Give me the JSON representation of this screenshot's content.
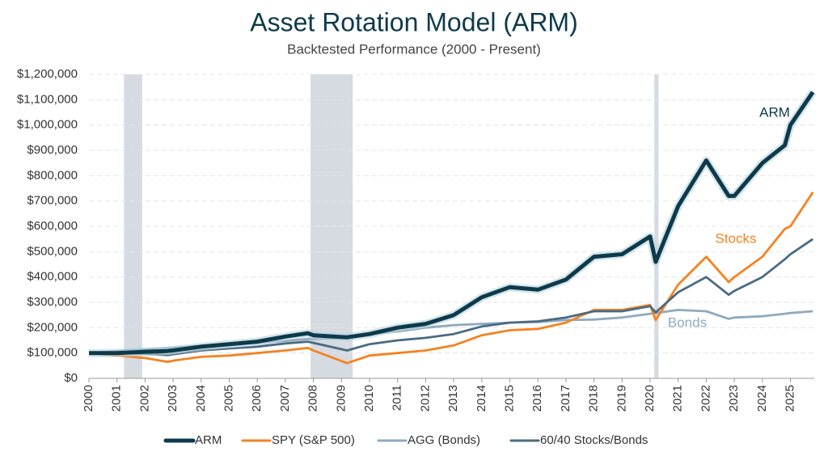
{
  "chart_data": {
    "type": "line",
    "title": "Asset Rotation Model (ARM)",
    "subtitle": "Backtested Performance (2000 - Present)",
    "x": [
      2000,
      2001,
      2002,
      2002.8,
      2003,
      2004,
      2005,
      2006,
      2007,
      2007.8,
      2008,
      2009.2,
      2010,
      2011,
      2012,
      2013,
      2014,
      2015,
      2016,
      2017,
      2018,
      2019,
      2020,
      2020.2,
      2021,
      2022,
      2022.8,
      2023,
      2024,
      2024.8,
      2025,
      2025.8
    ],
    "series": [
      {
        "name": "ARM",
        "color": "#0d3a4b",
        "values": [
          100000,
          100000,
          105000,
          108000,
          110000,
          125000,
          135000,
          145000,
          165000,
          178000,
          170000,
          162000,
          175000,
          200000,
          215000,
          250000,
          320000,
          360000,
          350000,
          390000,
          480000,
          490000,
          560000,
          460000,
          680000,
          860000,
          720000,
          720000,
          850000,
          920000,
          1000000,
          1130000
        ]
      },
      {
        "name": "SPY (S&P 500)",
        "color": "#f58220",
        "values": [
          100000,
          90000,
          80000,
          65000,
          70000,
          85000,
          90000,
          100000,
          110000,
          120000,
          110000,
          60000,
          90000,
          100000,
          110000,
          130000,
          170000,
          190000,
          195000,
          220000,
          270000,
          270000,
          290000,
          230000,
          370000,
          480000,
          380000,
          400000,
          480000,
          590000,
          600000,
          735000
        ]
      },
      {
        "name": "AGG (Bonds)",
        "color": "#8eaabf",
        "values": [
          100000,
          108000,
          115000,
          120000,
          122000,
          128000,
          135000,
          140000,
          148000,
          155000,
          155000,
          160000,
          175000,
          185000,
          200000,
          210000,
          215000,
          220000,
          222000,
          230000,
          232000,
          240000,
          255000,
          258000,
          270000,
          265000,
          235000,
          240000,
          245000,
          255000,
          258000,
          265000
        ]
      },
      {
        "name": "60/40 Stocks/Bonds",
        "color": "#4a6a82",
        "values": [
          100000,
          100000,
          97000,
          92000,
          95000,
          110000,
          118000,
          125000,
          138000,
          145000,
          140000,
          110000,
          135000,
          150000,
          160000,
          175000,
          205000,
          220000,
          225000,
          240000,
          265000,
          265000,
          285000,
          260000,
          340000,
          400000,
          330000,
          345000,
          400000,
          470000,
          490000,
          550000
        ]
      }
    ],
    "annotations": [
      "ARM",
      "Stocks",
      "Bonds"
    ],
    "shaded_periods": [
      [
        2001.25,
        2001.9
      ],
      [
        2007.9,
        2009.4
      ],
      [
        2020.15,
        2020.3
      ]
    ],
    "shade_color": "#d5dbe1",
    "xlim": [
      2000,
      2025.85
    ],
    "ylim": [
      0,
      1200000
    ],
    "xticks": [
      2000,
      2001,
      2002,
      2003,
      2004,
      2005,
      2006,
      2007,
      2008,
      2009,
      2010,
      2011,
      2012,
      2013,
      2014,
      2015,
      2016,
      2017,
      2018,
      2019,
      2020,
      2021,
      2022,
      2023,
      2024,
      2025
    ],
    "yticks": [
      {
        "value": 0,
        "label": "$0"
      },
      {
        "value": 100000,
        "label": "$100,000"
      },
      {
        "value": 200000,
        "label": "$200,000"
      },
      {
        "value": 300000,
        "label": "$300,000"
      },
      {
        "value": 400000,
        "label": "$400,000"
      },
      {
        "value": 500000,
        "label": "$500,000"
      },
      {
        "value": 600000,
        "label": "$600,000"
      },
      {
        "value": 700000,
        "label": "$700,000"
      },
      {
        "value": 800000,
        "label": "$800,000"
      },
      {
        "value": 900000,
        "label": "$900,000"
      },
      {
        "value": 1000000,
        "label": "$1,000,000"
      },
      {
        "value": 1100000,
        "label": "$1,100,000"
      },
      {
        "value": 1200000,
        "label": "$1,200,000"
      }
    ],
    "grid": true,
    "legend": "bottom"
  }
}
